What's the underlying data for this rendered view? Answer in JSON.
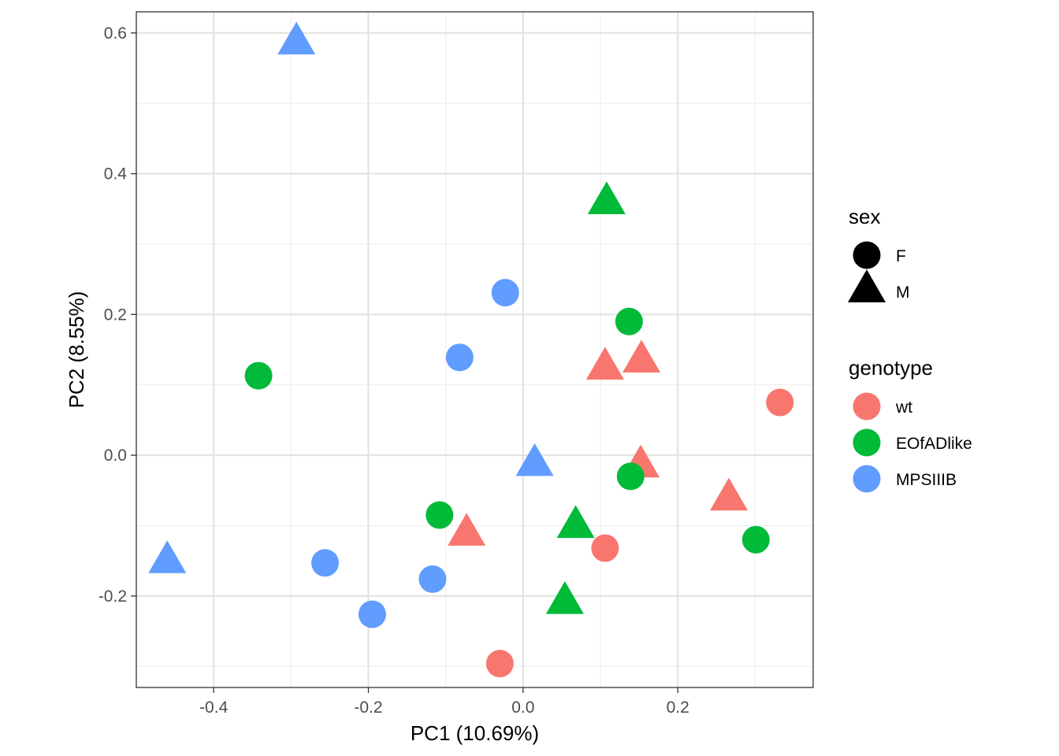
{
  "chart_data": {
    "type": "scatter",
    "title": "",
    "xlabel": "PC1 (10.69%)",
    "ylabel": "PC2 (8.55%)",
    "xlim": [
      -0.5,
      0.375
    ],
    "ylim": [
      -0.33,
      0.63
    ],
    "xticks": [
      -0.4,
      -0.2,
      0.0,
      0.2
    ],
    "xtick_labels": [
      "-0.4",
      "-0.2",
      "0.0",
      "0.2"
    ],
    "yticks": [
      -0.2,
      0.0,
      0.2,
      0.4,
      0.6
    ],
    "ytick_labels": [
      "-0.2",
      "0.0",
      "0.2",
      "0.4",
      "0.6"
    ],
    "grid": true,
    "legend_position": "right",
    "legend": {
      "shape_title": "sex",
      "shapes": [
        {
          "label": "F",
          "shape": "circle"
        },
        {
          "label": "M",
          "shape": "triangle"
        }
      ],
      "color_title": "genotype",
      "colors": [
        {
          "label": "wt",
          "color": "#F8766D"
        },
        {
          "label": "EOfADlike",
          "color": "#00BA38"
        },
        {
          "label": "MPSIIIB",
          "color": "#619CFF"
        }
      ]
    },
    "points": [
      {
        "x": -0.293,
        "y": 0.585,
        "sex": "M",
        "genotype": "MPSIIIB"
      },
      {
        "x": 0.108,
        "y": 0.358,
        "sex": "M",
        "genotype": "EOfADlike"
      },
      {
        "x": -0.023,
        "y": 0.231,
        "sex": "F",
        "genotype": "MPSIIIB"
      },
      {
        "x": 0.137,
        "y": 0.19,
        "sex": "F",
        "genotype": "EOfADlike"
      },
      {
        "x": -0.082,
        "y": 0.139,
        "sex": "F",
        "genotype": "MPSIIIB"
      },
      {
        "x": -0.342,
        "y": 0.113,
        "sex": "F",
        "genotype": "EOfADlike"
      },
      {
        "x": 0.153,
        "y": 0.133,
        "sex": "M",
        "genotype": "wt"
      },
      {
        "x": 0.106,
        "y": 0.123,
        "sex": "M",
        "genotype": "wt"
      },
      {
        "x": 0.332,
        "y": 0.075,
        "sex": "F",
        "genotype": "wt"
      },
      {
        "x": 0.015,
        "y": -0.014,
        "sex": "M",
        "genotype": "MPSIIIB"
      },
      {
        "x": 0.152,
        "y": -0.016,
        "sex": "M",
        "genotype": "wt"
      },
      {
        "x": 0.139,
        "y": -0.03,
        "sex": "F",
        "genotype": "EOfADlike"
      },
      {
        "x": 0.266,
        "y": -0.063,
        "sex": "M",
        "genotype": "wt"
      },
      {
        "x": -0.108,
        "y": -0.085,
        "sex": "F",
        "genotype": "EOfADlike"
      },
      {
        "x": 0.068,
        "y": -0.102,
        "sex": "M",
        "genotype": "EOfADlike"
      },
      {
        "x": -0.073,
        "y": -0.113,
        "sex": "M",
        "genotype": "wt"
      },
      {
        "x": 0.301,
        "y": -0.12,
        "sex": "F",
        "genotype": "EOfADlike"
      },
      {
        "x": 0.106,
        "y": -0.132,
        "sex": "F",
        "genotype": "wt"
      },
      {
        "x": -0.46,
        "y": -0.152,
        "sex": "M",
        "genotype": "MPSIIIB"
      },
      {
        "x": -0.256,
        "y": -0.153,
        "sex": "F",
        "genotype": "MPSIIIB"
      },
      {
        "x": -0.117,
        "y": -0.176,
        "sex": "F",
        "genotype": "MPSIIIB"
      },
      {
        "x": 0.054,
        "y": -0.21,
        "sex": "M",
        "genotype": "EOfADlike"
      },
      {
        "x": -0.195,
        "y": -0.226,
        "sex": "F",
        "genotype": "MPSIIIB"
      },
      {
        "x": -0.03,
        "y": -0.296,
        "sex": "F",
        "genotype": "wt"
      }
    ]
  }
}
